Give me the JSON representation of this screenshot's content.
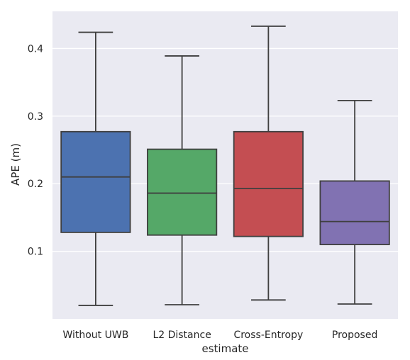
{
  "chart_data": {
    "type": "box",
    "xlabel": "estimate",
    "ylabel": "APE (m)",
    "ylim": [
      0.0,
      0.455
    ],
    "yticks": [
      "0.1",
      "0.2",
      "0.3",
      "0.4"
    ],
    "grid": true,
    "background": "#EAEAF2",
    "categories": [
      "Without UWB",
      "L2 Distance",
      "Cross-Entropy",
      "Proposed"
    ],
    "boxes": [
      {
        "name": "Without UWB",
        "whisker_low": 0.02,
        "q1": 0.128,
        "median": 0.21,
        "q3": 0.277,
        "whisker_high": 0.424,
        "color": "#4C72B0"
      },
      {
        "name": "L2 Distance",
        "whisker_low": 0.021,
        "q1": 0.124,
        "median": 0.186,
        "q3": 0.251,
        "whisker_high": 0.389,
        "color": "#55A868"
      },
      {
        "name": "Cross-Entropy",
        "whisker_low": 0.028,
        "q1": 0.122,
        "median": 0.193,
        "q3": 0.277,
        "whisker_high": 0.433,
        "color": "#C44E52"
      },
      {
        "name": "Proposed",
        "whisker_low": 0.022,
        "q1": 0.11,
        "median": 0.144,
        "q3": 0.204,
        "whisker_high": 0.323,
        "color": "#8172B2"
      }
    ]
  }
}
